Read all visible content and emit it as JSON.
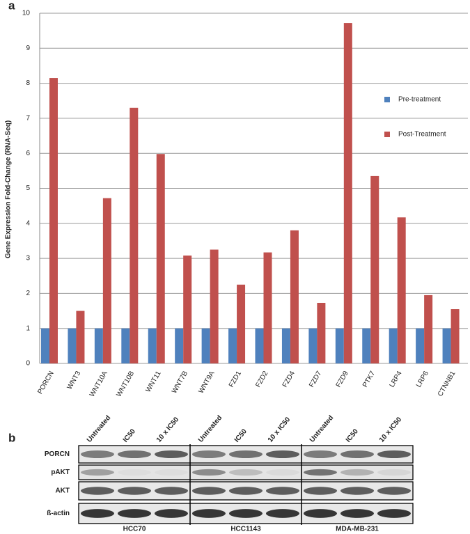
{
  "panel_labels": [
    "a",
    "b"
  ],
  "chart_data": {
    "type": "bar",
    "ylabel": "Gene Expression Fold-Change (RNA-Seq)",
    "categories": [
      "PORCN",
      "WNT3",
      "WNT10A",
      "WNT10B",
      "WNT11",
      "WNT7B",
      "WNT9A",
      "FZD1",
      "FZD2",
      "FZD4",
      "FZD7",
      "FZD9",
      "PTK7",
      "LRP4",
      "LRP6",
      "CTNNB1"
    ],
    "series": [
      {
        "name": "Pre-treatment",
        "color": "#4f81bd",
        "values": [
          1,
          1,
          1,
          1,
          1,
          1,
          1,
          1,
          1,
          1,
          1,
          1,
          1,
          1,
          1,
          1
        ]
      },
      {
        "name": "Post-Treatment",
        "color": "#c0504d",
        "values": [
          8.15,
          1.5,
          4.72,
          7.3,
          5.98,
          3.08,
          3.25,
          2.25,
          3.17,
          3.8,
          1.73,
          9.72,
          5.35,
          4.17,
          1.95,
          1.55
        ]
      }
    ],
    "ylim": [
      0,
      10
    ],
    "yticks": [
      0,
      1,
      2,
      3,
      4,
      5,
      6,
      7,
      8,
      9,
      10
    ],
    "grid": true,
    "legend": "right"
  },
  "blot": {
    "columns": [
      "Untreated",
      "IC50",
      "10 x IC50",
      "Untreated",
      "IC50",
      "10 x IC50",
      "Untreated",
      "IC50",
      "10 x IC50"
    ],
    "rows": [
      "PORCN",
      "pAKT",
      "AKT",
      "ß-actin"
    ],
    "cell_lines": [
      "HCC70",
      "HCC1143",
      "MDA-MB-231"
    ]
  }
}
